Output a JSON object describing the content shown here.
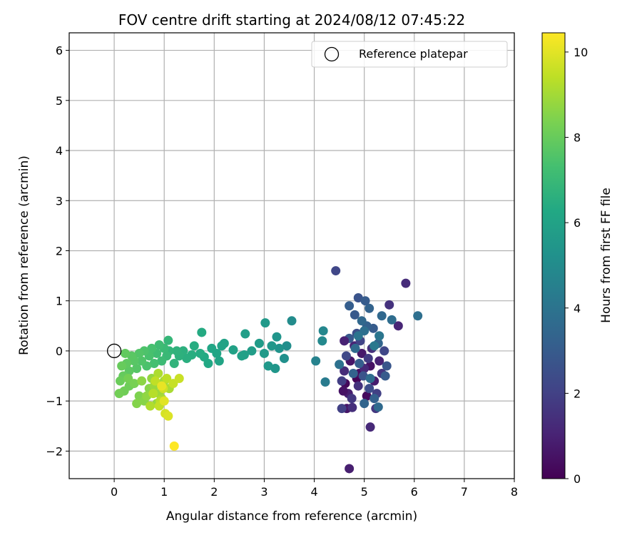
{
  "chart_data": {
    "type": "scatter",
    "title": "FOV centre drift starting at 2024/08/12 07:45:22",
    "xlabel": "Angular distance from reference (arcmin)",
    "ylabel": "Rotation from reference (arcmin)",
    "xlim": [
      -0.9,
      8.0
    ],
    "ylim": [
      -2.55,
      6.35
    ],
    "xticks": [
      0,
      1,
      2,
      3,
      4,
      5,
      6,
      7,
      8
    ],
    "yticks": [
      -2,
      -1,
      0,
      1,
      2,
      3,
      4,
      5,
      6
    ],
    "ytick_labels": [
      "−2",
      "−1",
      "0",
      "1",
      "2",
      "3",
      "4",
      "5",
      "6"
    ],
    "grid": true,
    "legend": {
      "position": "top-right",
      "entries": [
        "Reference platepar"
      ]
    },
    "reference_point": {
      "x": 0,
      "y": 0,
      "marker": "open-circle",
      "color": "#000000"
    },
    "colorbar": {
      "label": "Hours from first FF file",
      "range": [
        0,
        10.45
      ],
      "ticks": [
        0,
        2,
        4,
        6,
        8,
        10
      ],
      "colormap": "viridis"
    },
    "series": [
      {
        "points": [
          [
            4.85,
            -0.55,
            0.1
          ],
          [
            4.62,
            -0.65,
            0.2
          ],
          [
            5.05,
            -0.9,
            0.3
          ],
          [
            4.9,
            -0.45,
            0.4
          ],
          [
            5.12,
            -0.3,
            0.5
          ],
          [
            4.72,
            -0.2,
            0.6
          ],
          [
            4.95,
            -0.05,
            0.7
          ],
          [
            5.2,
            -0.6,
            0.8
          ],
          [
            4.68,
            -0.85,
            0.9
          ],
          [
            5.3,
            -0.2,
            1.0
          ],
          [
            4.8,
            0.1,
            1.1
          ],
          [
            5.0,
            -0.35,
            1.2
          ],
          [
            4.6,
            -0.4,
            1.3
          ],
          [
            5.15,
            0.05,
            1.4
          ],
          [
            4.88,
            -0.7,
            1.5
          ],
          [
            5.35,
            -0.45,
            1.6
          ],
          [
            4.75,
            -0.95,
            1.7
          ],
          [
            5.08,
            -0.15,
            1.8
          ],
          [
            4.55,
            -0.6,
            1.9
          ],
          [
            5.25,
            -0.85,
            2.0
          ],
          [
            4.92,
            0.2,
            2.1
          ],
          [
            5.4,
            0.0,
            2.2
          ],
          [
            4.64,
            -0.1,
            2.3
          ],
          [
            5.1,
            -0.75,
            2.4
          ],
          [
            4.85,
            0.35,
            2.5
          ],
          [
            5.3,
            0.3,
            2.6
          ],
          [
            4.98,
            -0.5,
            2.7
          ],
          [
            5.45,
            -0.3,
            2.8
          ],
          [
            4.7,
            0.25,
            2.9
          ],
          [
            5.18,
            0.45,
            3.0
          ],
          [
            4.9,
            -0.25,
            3.1
          ],
          [
            5.05,
            0.5,
            3.2
          ],
          [
            4.78,
            -0.45,
            3.3
          ],
          [
            5.28,
            0.15,
            3.4
          ],
          [
            4.95,
            0.6,
            3.5
          ],
          [
            4.82,
            0.05,
            3.6
          ],
          [
            5.12,
            -0.55,
            3.7
          ],
          [
            5.0,
            0.4,
            3.8
          ],
          [
            4.88,
            0.3,
            4.0
          ],
          [
            5.2,
            0.1,
            4.2
          ],
          [
            4.65,
            -1.15,
            0.6
          ],
          [
            4.7,
            -2.35,
            0.9
          ],
          [
            5.12,
            -1.52,
            1.2
          ],
          [
            4.76,
            -1.13,
            1.4
          ],
          [
            5.23,
            -1.15,
            1.7
          ],
          [
            4.55,
            -1.15,
            2.0
          ],
          [
            4.43,
            1.6,
            2.2
          ],
          [
            5.83,
            1.35,
            1.3
          ],
          [
            5.5,
            0.92,
            1.5
          ],
          [
            4.88,
            1.06,
            2.7
          ],
          [
            4.7,
            0.9,
            3.1
          ],
          [
            5.1,
            0.85,
            3.3
          ],
          [
            5.68,
            0.5,
            1.1
          ],
          [
            6.07,
            0.7,
            3.8
          ],
          [
            5.35,
            0.7,
            3.5
          ],
          [
            4.81,
            0.72,
            2.9
          ],
          [
            5.02,
            1.0,
            3.0
          ],
          [
            5.55,
            0.62,
            3.7
          ],
          [
            5.28,
            -1.12,
            3.6
          ],
          [
            5.0,
            -1.05,
            3.4
          ],
          [
            5.42,
            -0.5,
            3.0
          ],
          [
            5.2,
            -0.95,
            3.2
          ],
          [
            4.6,
            0.2,
            1.0
          ],
          [
            4.58,
            -0.8,
            0.5
          ],
          [
            5.3,
            0.3,
            4.1
          ],
          [
            4.5,
            -0.27,
            3.9
          ],
          [
            4.22,
            -0.62,
            4.3
          ],
          [
            4.03,
            -0.2,
            4.6
          ],
          [
            4.18,
            0.4,
            4.8
          ],
          [
            4.16,
            0.2,
            4.9
          ],
          [
            3.55,
            0.6,
            5.0
          ],
          [
            3.45,
            0.1,
            5.1
          ],
          [
            3.4,
            -0.15,
            5.2
          ],
          [
            3.3,
            0.05,
            5.3
          ],
          [
            3.25,
            0.28,
            5.4
          ],
          [
            3.22,
            -0.35,
            5.45
          ],
          [
            3.15,
            0.1,
            5.5
          ],
          [
            3.08,
            -0.3,
            5.55
          ],
          [
            3.02,
            0.56,
            5.6
          ],
          [
            3.0,
            -0.05,
            5.65
          ],
          [
            2.9,
            0.15,
            5.7
          ],
          [
            2.75,
            0.0,
            5.75
          ],
          [
            2.62,
            0.34,
            5.8
          ],
          [
            2.6,
            -0.08,
            5.85
          ],
          [
            2.55,
            -0.1,
            5.9
          ],
          [
            2.38,
            0.02,
            5.95
          ],
          [
            2.2,
            0.15,
            6.0
          ],
          [
            2.15,
            0.1,
            6.05
          ],
          [
            2.1,
            -0.2,
            6.1
          ],
          [
            2.05,
            -0.05,
            6.15
          ],
          [
            1.95,
            0.05,
            6.2
          ],
          [
            1.88,
            -0.25,
            6.25
          ],
          [
            1.8,
            -0.12,
            6.3
          ],
          [
            1.75,
            0.37,
            6.35
          ],
          [
            1.72,
            -0.05,
            6.4
          ],
          [
            1.6,
            0.1,
            6.45
          ],
          [
            1.55,
            -0.08,
            6.5
          ],
          [
            1.45,
            -0.15,
            6.55
          ],
          [
            1.38,
            0.0,
            6.6
          ],
          [
            1.3,
            -0.1,
            6.65
          ],
          [
            1.25,
            0.0,
            6.7
          ],
          [
            1.2,
            -0.25,
            6.75
          ],
          [
            1.1,
            0.0,
            6.8
          ],
          [
            1.08,
            0.21,
            6.9
          ],
          [
            1.05,
            -0.1,
            7.0
          ],
          [
            1.0,
            0.05,
            7.05
          ],
          [
            0.95,
            -0.2,
            7.1
          ],
          [
            0.9,
            0.12,
            7.15
          ],
          [
            0.85,
            -0.05,
            7.2
          ],
          [
            0.8,
            -0.25,
            7.3
          ],
          [
            0.75,
            0.05,
            7.35
          ],
          [
            0.7,
            -0.1,
            7.4
          ],
          [
            0.65,
            -0.3,
            7.45
          ],
          [
            0.6,
            0.0,
            7.5
          ],
          [
            0.55,
            -0.2,
            7.55
          ],
          [
            0.5,
            -0.05,
            7.6
          ],
          [
            0.45,
            -0.35,
            7.65
          ],
          [
            0.4,
            -0.2,
            7.7
          ],
          [
            0.35,
            -0.1,
            7.75
          ],
          [
            0.3,
            -0.4,
            7.8
          ],
          [
            0.25,
            -0.25,
            7.85
          ],
          [
            0.22,
            -0.05,
            7.9
          ],
          [
            0.18,
            -0.5,
            7.95
          ],
          [
            0.15,
            -0.3,
            8.0
          ],
          [
            0.12,
            -0.6,
            8.05
          ],
          [
            0.3,
            -0.7,
            8.1
          ],
          [
            0.2,
            -0.8,
            8.15
          ],
          [
            0.1,
            -0.85,
            8.2
          ],
          [
            0.28,
            -0.55,
            8.25
          ],
          [
            0.4,
            -0.65,
            8.3
          ],
          [
            0.5,
            -0.9,
            8.4
          ],
          [
            0.45,
            -1.05,
            8.5
          ],
          [
            0.6,
            -1.0,
            8.55
          ],
          [
            0.7,
            -0.75,
            8.6
          ],
          [
            0.55,
            -0.6,
            8.65
          ],
          [
            0.65,
            -0.9,
            8.7
          ],
          [
            0.75,
            -0.55,
            8.75
          ],
          [
            0.85,
            -1.05,
            8.8
          ],
          [
            0.8,
            -0.7,
            8.85
          ],
          [
            0.9,
            -0.85,
            8.9
          ],
          [
            1.0,
            -0.6,
            9.0
          ],
          [
            0.95,
            -0.95,
            9.05
          ],
          [
            1.1,
            -0.75,
            9.1
          ],
          [
            0.88,
            -0.45,
            9.15
          ],
          [
            0.72,
            -1.1,
            9.2
          ],
          [
            0.78,
            -0.85,
            9.3
          ],
          [
            0.92,
            -1.0,
            9.35
          ],
          [
            1.05,
            -0.55,
            9.4
          ],
          [
            0.82,
            -0.6,
            9.45
          ],
          [
            0.9,
            -1.1,
            9.5
          ],
          [
            1.18,
            -0.65,
            9.55
          ],
          [
            1.3,
            -0.55,
            9.6
          ],
          [
            0.98,
            -0.75,
            9.7
          ],
          [
            1.02,
            -1.25,
            9.8
          ],
          [
            1.08,
            -1.3,
            9.9
          ],
          [
            1.0,
            -1.0,
            10.0
          ],
          [
            0.95,
            -0.7,
            10.1
          ],
          [
            1.2,
            -1.9,
            10.45
          ]
        ]
      }
    ]
  }
}
